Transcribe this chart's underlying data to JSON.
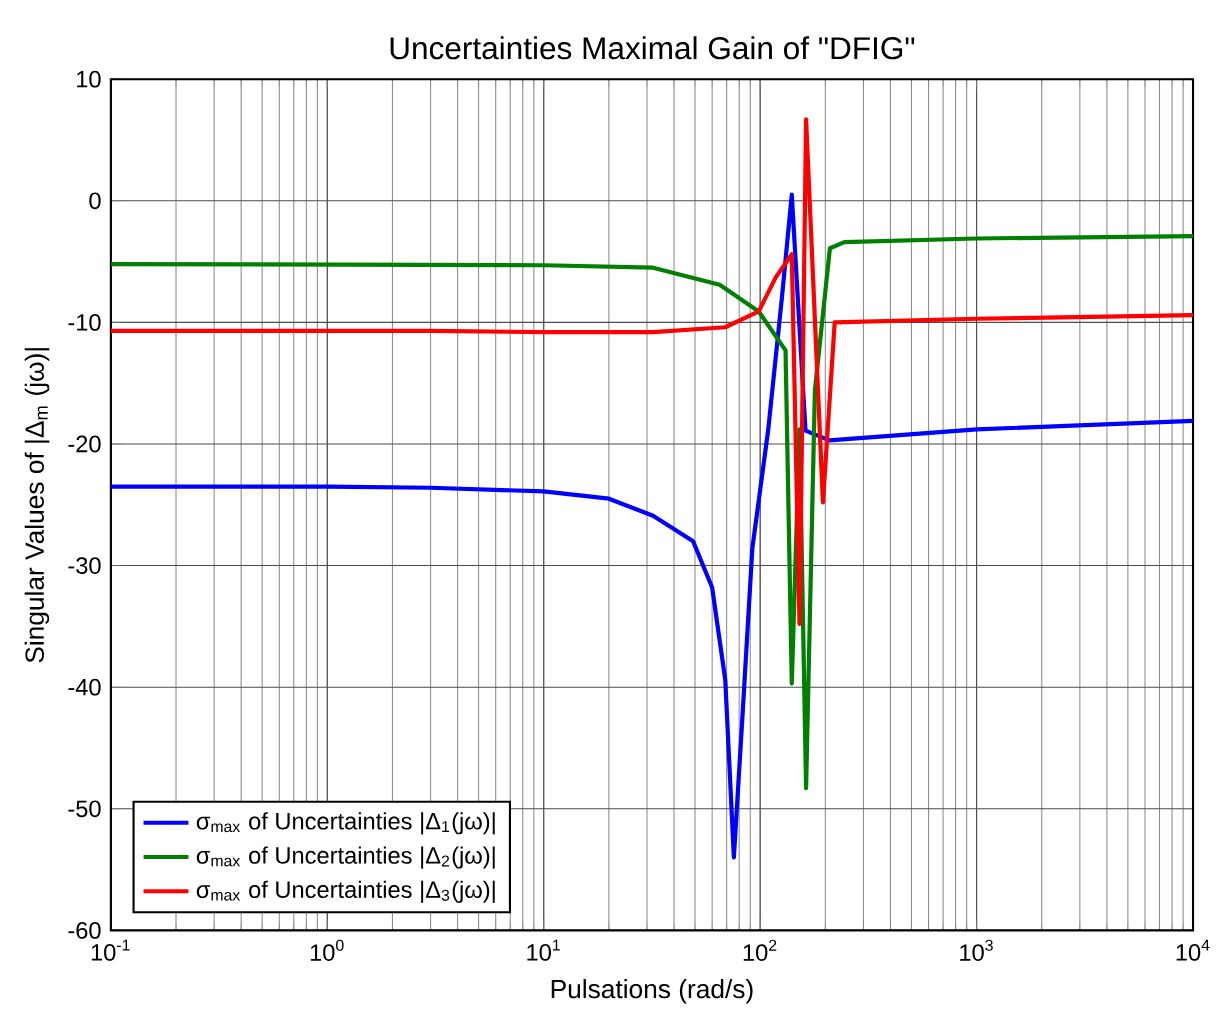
{
  "chart_data": {
    "type": "line",
    "title": "Uncertainties Maximal Gain of \"DFIG\"",
    "xlabel": "Pulsations (rad/s)",
    "ylabel": "Singular Values of  |Δ$_{m}$ (jω)|",
    "log": "x",
    "grid": true,
    "legend": "bottom left",
    "xlim": [
      0.1,
      10000
    ],
    "ylim": [
      -60,
      10
    ],
    "xticks": [
      {
        "value": 0.1,
        "label": "10$^{-1}$"
      },
      {
        "value": 1,
        "label": "10$^{0}$"
      },
      {
        "value": 10,
        "label": "10$^{1}$"
      },
      {
        "value": 100,
        "label": "10$^{2}$"
      },
      {
        "value": 1000,
        "label": "10$^{3}$"
      },
      {
        "value": 10000,
        "label": "10$^{4}$"
      }
    ],
    "yticks": [
      -60,
      -50,
      -40,
      -30,
      -20,
      -10,
      0,
      10
    ],
    "series": [
      {
        "name": "σ$_{max}$ of Uncertainties |Δ$_{1}$(jω)|",
        "color": "#0000ff",
        "x": [
          0.1,
          1,
          3,
          10,
          20,
          32,
          49,
          60,
          69,
          75.6,
          82.7,
          92,
          109,
          126,
          140,
          147,
          162,
          209,
          1000,
          10000
        ],
        "values": [
          -23.5,
          -23.5,
          -23.6,
          -23.9,
          -24.5,
          -25.9,
          -28.0,
          -31.8,
          -39.4,
          -54,
          -42.6,
          -28.6,
          -18.8,
          -8.0,
          0.5,
          null,
          -18.9,
          -19.7,
          -18.8,
          -18.1
        ]
      },
      {
        "name": "σ$_{max}$ of Uncertainties |Δ$_{2}$(jω)|",
        "color": "#008000",
        "x": [
          0.1,
          10,
          32,
          65,
          98.5,
          131,
          140,
          152,
          163,
          179,
          210,
          245,
          1000,
          10000
        ],
        "values": [
          -5.2,
          -5.3,
          -5.5,
          -6.9,
          -9.1,
          -12.3,
          -39.7,
          -18.8,
          -48.3,
          -15.6,
          -3.9,
          -3.4,
          -3.1,
          -2.9
        ]
      },
      {
        "name": "σ$_{max}$ of Uncertainties |Δ$_{3}$(jω)|",
        "color": "#ff0000",
        "x": [
          0.1,
          3,
          10,
          32,
          69,
          98.5,
          118,
          140,
          152,
          163,
          195,
          221,
          1000,
          10000
        ],
        "values": [
          -10.7,
          -10.7,
          -10.8,
          -10.8,
          -10.4,
          -9.1,
          -6.3,
          -4.4,
          -34.8,
          6.7,
          -24.8,
          -10.0,
          -9.7,
          -9.4
        ]
      }
    ]
  }
}
